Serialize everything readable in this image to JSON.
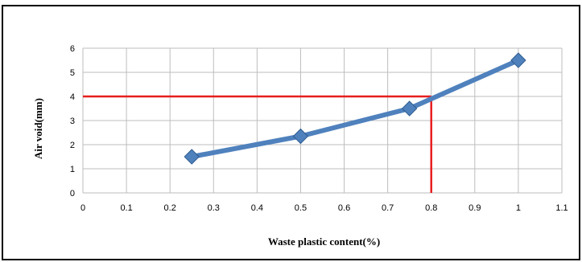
{
  "chart_data": {
    "type": "line",
    "title": "",
    "xlabel": "Waste plastic content(%)",
    "ylabel": "Air void(mm)",
    "xlim": [
      0,
      1.1
    ],
    "ylim": [
      0,
      6
    ],
    "xticks": [
      "0",
      "0.1",
      "0.2",
      "0.3",
      "0.4",
      "0.5",
      "0.6",
      "0.7",
      "0.8",
      "0.9",
      "1",
      "1.1"
    ],
    "yticks": [
      "0",
      "1",
      "2",
      "3",
      "4",
      "5",
      "6"
    ],
    "grid": true,
    "legend": "none",
    "series": [
      {
        "x": [
          0.25,
          0.5,
          0.75,
          1.0
        ],
        "values": [
          1.5,
          2.35,
          3.5,
          5.5
        ],
        "color": "#4f81bd",
        "marker": "diamond"
      }
    ],
    "annotations": [
      {
        "type": "reference-lines",
        "color": "#e81e1e",
        "target_y": 4,
        "target_x": 0.8
      }
    ]
  }
}
